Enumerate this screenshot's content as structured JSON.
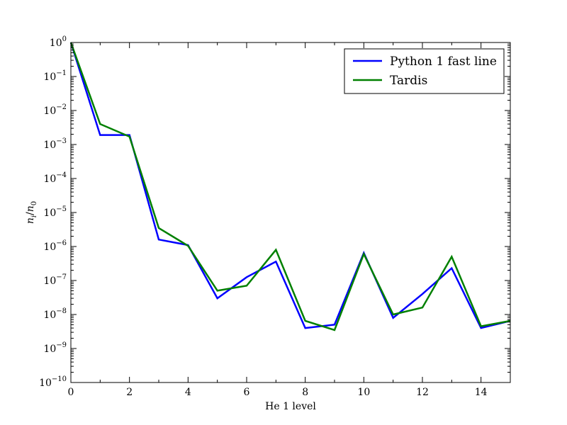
{
  "chart_data": {
    "type": "line",
    "xlabel": "He 1 level",
    "ylabel": "n_i/n_0",
    "ylabel_parts": {
      "base": "n",
      "num_sub": "i",
      "sep": "/",
      "den_base": "n",
      "den_sub": "0"
    },
    "xlim": [
      0,
      15
    ],
    "ylim": [
      1e-10,
      1
    ],
    "yscale": "log",
    "grid": false,
    "legend_position": "top-right",
    "x_ticks": [
      "0",
      "2",
      "4",
      "6",
      "8",
      "10",
      "12",
      "14"
    ],
    "y_ticks": [
      {
        "base": "10",
        "exp": "0"
      },
      {
        "base": "10",
        "exp": "−1"
      },
      {
        "base": "10",
        "exp": "−2"
      },
      {
        "base": "10",
        "exp": "−3"
      },
      {
        "base": "10",
        "exp": "−4"
      },
      {
        "base": "10",
        "exp": "−5"
      },
      {
        "base": "10",
        "exp": "−6"
      },
      {
        "base": "10",
        "exp": "−7"
      },
      {
        "base": "10",
        "exp": "−8"
      },
      {
        "base": "10",
        "exp": "−9"
      },
      {
        "base": "10",
        "exp": "−10"
      }
    ],
    "x": [
      0,
      1,
      2,
      3,
      4,
      5,
      6,
      7,
      8,
      9,
      10,
      11,
      12,
      13,
      14,
      15
    ],
    "series": [
      {
        "name": "Python 1 fast line",
        "color": "#0000ff",
        "values": [
          1.0,
          0.0019,
          0.0019,
          1.6e-06,
          1.1e-06,
          3e-08,
          1.25e-07,
          3.6e-07,
          4e-09,
          5e-09,
          6.5e-07,
          8e-09,
          4e-08,
          2.3e-07,
          4e-09,
          6.5e-09
        ]
      },
      {
        "name": "Tardis",
        "color": "#008000",
        "values": [
          1.0,
          0.004,
          0.0017,
          3.5e-06,
          1.05e-06,
          5e-08,
          7e-08,
          8e-07,
          6.5e-09,
          3.5e-09,
          6e-07,
          1e-08,
          1.6e-08,
          5e-07,
          4.5e-09,
          6.5e-09
        ]
      }
    ]
  }
}
